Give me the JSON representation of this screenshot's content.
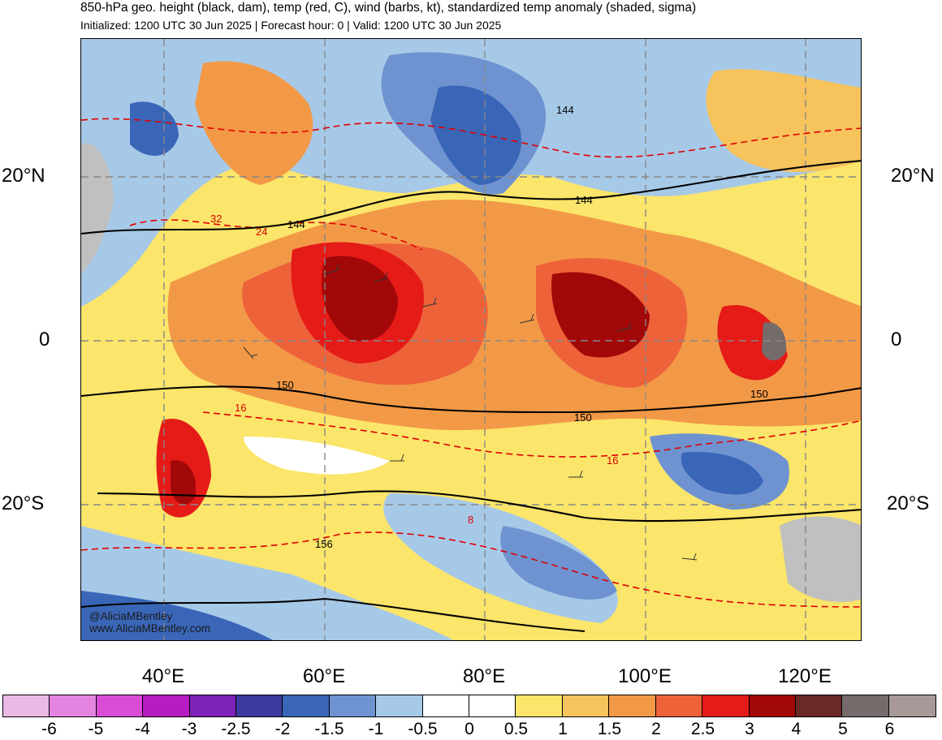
{
  "header": {
    "title": "850-hPa geo. height (black, dam), temp (red, C), wind (barbs, kt), standardized temp anomaly (shaded, sigma)",
    "subtitle": "Initialized: 1200 UTC 30 Jun 2025 | Forecast hour: 0 | Valid: 1200 UTC 30 Jun 2025"
  },
  "map": {
    "lat_labels": {
      "n20": "20°N",
      "eq": "0",
      "s20": "20°S"
    },
    "lon_labels": [
      "40°E",
      "60°E",
      "80°E",
      "100°E",
      "120°E"
    ],
    "height_contour_labels": [
      "144",
      "144",
      "144",
      "150",
      "150",
      "150",
      "156"
    ],
    "temp_contour_labels": [
      "32",
      "24",
      "16",
      "16",
      "8"
    ],
    "watermark": {
      "handle": "@AliciaMBentley",
      "site": "www.AliciaMBentley.com"
    },
    "colors": {
      "height_contour": "#000000",
      "temp_contour": "#e00000",
      "grid": "#888888",
      "land": "#c0c0c0"
    }
  },
  "colorbar": {
    "tick_labels": [
      "-6",
      "-5",
      "-4",
      "-3",
      "-2.5",
      "-2",
      "-1.5",
      "-1",
      "-0.5",
      "0",
      "0.5",
      "1",
      "1.5",
      "2",
      "2.5",
      "3",
      "4",
      "5",
      "6"
    ],
    "colors": [
      "#ebb9e6",
      "#e584e0",
      "#d94dd6",
      "#b61cc2",
      "#7d23b7",
      "#3c3a9e",
      "#3a66b8",
      "#6e93d0",
      "#a7c9e8",
      "#ffffff",
      "#ffffff",
      "#fbe56a",
      "#f6c35c",
      "#f29947",
      "#ee623a",
      "#e51b18",
      "#a20808",
      "#6a2a2a",
      "#756b6b",
      "#a89999"
    ]
  }
}
